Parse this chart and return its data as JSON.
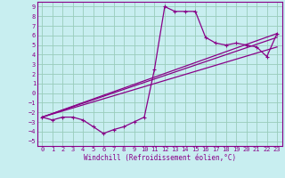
{
  "bg_color": "#c8eef0",
  "grid_color": "#99ccbb",
  "line_color": "#880088",
  "xlim": [
    -0.5,
    23.5
  ],
  "ylim": [
    -5.5,
    9.5
  ],
  "xticks": [
    0,
    1,
    2,
    3,
    4,
    5,
    6,
    7,
    8,
    9,
    10,
    11,
    12,
    13,
    14,
    15,
    16,
    17,
    18,
    19,
    20,
    21,
    22,
    23
  ],
  "yticks": [
    -5,
    -4,
    -3,
    -2,
    -1,
    0,
    1,
    2,
    3,
    4,
    5,
    6,
    7,
    8,
    9
  ],
  "xlabel": "Windchill (Refroidissement éolien,°C)",
  "main_x": [
    0,
    1,
    2,
    3,
    4,
    5,
    6,
    7,
    8,
    9,
    10,
    11,
    12,
    13,
    14,
    15,
    16,
    17,
    18,
    19,
    20,
    21,
    22,
    23
  ],
  "main_y": [
    -2.5,
    -2.8,
    -2.5,
    -2.5,
    -2.8,
    -3.5,
    -4.2,
    -3.8,
    -3.5,
    -3.0,
    -2.5,
    2.5,
    9.0,
    8.5,
    8.5,
    8.5,
    5.8,
    5.2,
    5.0,
    5.2,
    5.0,
    4.8,
    3.8,
    6.2
  ],
  "line1_x": [
    0,
    23
  ],
  "line1_y": [
    -2.5,
    5.8
  ],
  "line2_x": [
    0,
    23
  ],
  "line2_y": [
    -2.5,
    4.8
  ],
  "line3_x": [
    0,
    23
  ],
  "line3_y": [
    -2.5,
    6.2
  ],
  "tick_fontsize": 5,
  "xlabel_fontsize": 5.5
}
